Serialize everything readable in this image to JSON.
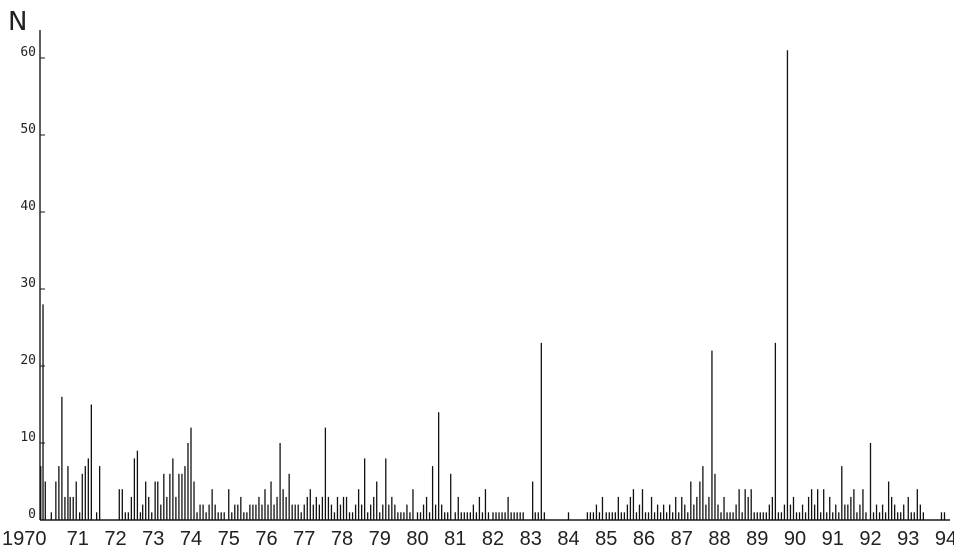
{
  "chart_data": {
    "type": "bar",
    "title": "",
    "ylabel": "N",
    "xlabel": "",
    "ylim": [
      0,
      62
    ],
    "xlim": [
      1970,
      1995
    ],
    "grid": false,
    "y_ticks": [
      {
        "value": 0,
        "label": "0"
      },
      {
        "value": 10,
        "label": "10"
      },
      {
        "value": 20,
        "label": "20"
      },
      {
        "value": 30,
        "label": "30"
      },
      {
        "value": 40,
        "label": "40"
      },
      {
        "value": 50,
        "label": "50"
      },
      {
        "value": 60,
        "label": "60"
      }
    ],
    "x_ticks": [
      {
        "value": 1970,
        "label": "1970"
      },
      {
        "value": 1971,
        "label": "71"
      },
      {
        "value": 1972,
        "label": "72"
      },
      {
        "value": 1973,
        "label": "73"
      },
      {
        "value": 1974,
        "label": "74"
      },
      {
        "value": 1975,
        "label": "75"
      },
      {
        "value": 1976,
        "label": "76"
      },
      {
        "value": 1977,
        "label": "77"
      },
      {
        "value": 1978,
        "label": "78"
      },
      {
        "value": 1979,
        "label": "79"
      },
      {
        "value": 1980,
        "label": "80"
      },
      {
        "value": 1981,
        "label": "81"
      },
      {
        "value": 1982,
        "label": "82"
      },
      {
        "value": 1983,
        "label": "83"
      },
      {
        "value": 1984,
        "label": "84"
      },
      {
        "value": 1985,
        "label": "85"
      },
      {
        "value": 1986,
        "label": "86"
      },
      {
        "value": 1987,
        "label": "87"
      },
      {
        "value": 1988,
        "label": "88"
      },
      {
        "value": 1989,
        "label": "89"
      },
      {
        "value": 1990,
        "label": "90"
      },
      {
        "value": 1991,
        "label": "91"
      },
      {
        "value": 1992,
        "label": "92"
      },
      {
        "value": 1993,
        "label": "93"
      },
      {
        "value": 1994,
        "label": "94"
      }
    ],
    "series": [
      {
        "points": [
          [
            1970.02,
            7
          ],
          [
            1970.08,
            28
          ],
          [
            1970.14,
            5
          ],
          [
            1970.3,
            1
          ],
          [
            1970.42,
            5
          ],
          [
            1970.5,
            7
          ],
          [
            1970.58,
            16
          ],
          [
            1970.66,
            3
          ],
          [
            1970.74,
            7
          ],
          [
            1970.8,
            3
          ],
          [
            1970.88,
            3
          ],
          [
            1970.96,
            5
          ],
          [
            1971.05,
            1
          ],
          [
            1971.12,
            6
          ],
          [
            1971.2,
            7
          ],
          [
            1971.28,
            8
          ],
          [
            1971.36,
            15
          ],
          [
            1971.5,
            1
          ],
          [
            1971.58,
            7
          ],
          [
            1972.1,
            4
          ],
          [
            1972.18,
            4
          ],
          [
            1972.26,
            1
          ],
          [
            1972.34,
            1
          ],
          [
            1972.42,
            3
          ],
          [
            1972.5,
            8
          ],
          [
            1972.58,
            9
          ],
          [
            1972.66,
            1
          ],
          [
            1972.72,
            2
          ],
          [
            1972.8,
            5
          ],
          [
            1972.88,
            3
          ],
          [
            1972.96,
            1
          ],
          [
            1973.05,
            5
          ],
          [
            1973.12,
            5
          ],
          [
            1973.2,
            2
          ],
          [
            1973.28,
            6
          ],
          [
            1973.36,
            3
          ],
          [
            1973.44,
            6
          ],
          [
            1973.52,
            8
          ],
          [
            1973.6,
            3
          ],
          [
            1973.68,
            6
          ],
          [
            1973.76,
            6
          ],
          [
            1973.84,
            7
          ],
          [
            1973.92,
            10
          ],
          [
            1974.0,
            12
          ],
          [
            1974.08,
            5
          ],
          [
            1974.16,
            1
          ],
          [
            1974.24,
            2
          ],
          [
            1974.32,
            2
          ],
          [
            1974.4,
            1
          ],
          [
            1974.48,
            2
          ],
          [
            1974.56,
            4
          ],
          [
            1974.64,
            2
          ],
          [
            1974.72,
            1
          ],
          [
            1974.8,
            1
          ],
          [
            1974.88,
            1
          ],
          [
            1975.0,
            4
          ],
          [
            1975.08,
            1
          ],
          [
            1975.16,
            2
          ],
          [
            1975.24,
            2
          ],
          [
            1975.32,
            3
          ],
          [
            1975.4,
            1
          ],
          [
            1975.48,
            1
          ],
          [
            1975.56,
            2
          ],
          [
            1975.64,
            2
          ],
          [
            1975.72,
            2
          ],
          [
            1975.8,
            3
          ],
          [
            1975.88,
            2
          ],
          [
            1975.96,
            4
          ],
          [
            1976.04,
            2
          ],
          [
            1976.12,
            5
          ],
          [
            1976.2,
            2
          ],
          [
            1976.28,
            3
          ],
          [
            1976.36,
            10
          ],
          [
            1976.44,
            4
          ],
          [
            1976.52,
            3
          ],
          [
            1976.6,
            6
          ],
          [
            1976.68,
            2
          ],
          [
            1976.76,
            2
          ],
          [
            1976.84,
            2
          ],
          [
            1976.92,
            1
          ],
          [
            1977.0,
            2
          ],
          [
            1977.08,
            3
          ],
          [
            1977.16,
            4
          ],
          [
            1977.24,
            2
          ],
          [
            1977.32,
            3
          ],
          [
            1977.4,
            2
          ],
          [
            1977.48,
            3
          ],
          [
            1977.56,
            12
          ],
          [
            1977.64,
            3
          ],
          [
            1977.72,
            2
          ],
          [
            1977.8,
            1
          ],
          [
            1977.88,
            3
          ],
          [
            1977.96,
            2
          ],
          [
            1978.04,
            3
          ],
          [
            1978.12,
            3
          ],
          [
            1978.2,
            1
          ],
          [
            1978.28,
            1
          ],
          [
            1978.36,
            2
          ],
          [
            1978.44,
            4
          ],
          [
            1978.52,
            2
          ],
          [
            1978.6,
            8
          ],
          [
            1978.68,
            1
          ],
          [
            1978.76,
            2
          ],
          [
            1978.84,
            3
          ],
          [
            1978.92,
            5
          ],
          [
            1979.0,
            1
          ],
          [
            1979.08,
            2
          ],
          [
            1979.16,
            8
          ],
          [
            1979.24,
            2
          ],
          [
            1979.32,
            3
          ],
          [
            1979.4,
            2
          ],
          [
            1979.48,
            1
          ],
          [
            1979.56,
            1
          ],
          [
            1979.64,
            1
          ],
          [
            1979.72,
            2
          ],
          [
            1979.8,
            1
          ],
          [
            1979.88,
            4
          ],
          [
            1980.0,
            1
          ],
          [
            1980.08,
            1
          ],
          [
            1980.16,
            2
          ],
          [
            1980.24,
            3
          ],
          [
            1980.32,
            1
          ],
          [
            1980.4,
            7
          ],
          [
            1980.48,
            2
          ],
          [
            1980.56,
            14
          ],
          [
            1980.64,
            2
          ],
          [
            1980.72,
            1
          ],
          [
            1980.8,
            1
          ],
          [
            1980.88,
            6
          ],
          [
            1981.0,
            1
          ],
          [
            1981.08,
            3
          ],
          [
            1981.16,
            1
          ],
          [
            1981.24,
            1
          ],
          [
            1981.32,
            1
          ],
          [
            1981.4,
            1
          ],
          [
            1981.48,
            2
          ],
          [
            1981.56,
            1
          ],
          [
            1981.64,
            3
          ],
          [
            1981.72,
            1
          ],
          [
            1981.8,
            4
          ],
          [
            1981.88,
            1
          ],
          [
            1982.0,
            1
          ],
          [
            1982.08,
            1
          ],
          [
            1982.16,
            1
          ],
          [
            1982.24,
            1
          ],
          [
            1982.32,
            1
          ],
          [
            1982.4,
            3
          ],
          [
            1982.48,
            1
          ],
          [
            1982.56,
            1
          ],
          [
            1982.64,
            1
          ],
          [
            1982.72,
            1
          ],
          [
            1982.8,
            1
          ],
          [
            1983.05,
            5
          ],
          [
            1983.12,
            1
          ],
          [
            1983.2,
            1
          ],
          [
            1983.28,
            23
          ],
          [
            1983.36,
            1
          ],
          [
            1984.0,
            1
          ],
          [
            1984.5,
            1
          ],
          [
            1984.58,
            1
          ],
          [
            1984.66,
            1
          ],
          [
            1984.74,
            2
          ],
          [
            1984.82,
            1
          ],
          [
            1984.9,
            3
          ],
          [
            1985.0,
            1
          ],
          [
            1985.08,
            1
          ],
          [
            1985.16,
            1
          ],
          [
            1985.24,
            1
          ],
          [
            1985.32,
            3
          ],
          [
            1985.4,
            1
          ],
          [
            1985.48,
            1
          ],
          [
            1985.56,
            2
          ],
          [
            1985.64,
            3
          ],
          [
            1985.72,
            4
          ],
          [
            1985.8,
            1
          ],
          [
            1985.88,
            2
          ],
          [
            1985.96,
            4
          ],
          [
            1986.04,
            1
          ],
          [
            1986.12,
            1
          ],
          [
            1986.2,
            3
          ],
          [
            1986.28,
            1
          ],
          [
            1986.36,
            2
          ],
          [
            1986.44,
            1
          ],
          [
            1986.52,
            2
          ],
          [
            1986.6,
            1
          ],
          [
            1986.68,
            2
          ],
          [
            1986.76,
            1
          ],
          [
            1986.84,
            3
          ],
          [
            1986.92,
            1
          ],
          [
            1987.0,
            3
          ],
          [
            1987.08,
            2
          ],
          [
            1987.16,
            1
          ],
          [
            1987.24,
            5
          ],
          [
            1987.32,
            2
          ],
          [
            1987.4,
            3
          ],
          [
            1987.48,
            5
          ],
          [
            1987.56,
            7
          ],
          [
            1987.64,
            2
          ],
          [
            1987.72,
            3
          ],
          [
            1987.8,
            22
          ],
          [
            1987.88,
            6
          ],
          [
            1987.96,
            2
          ],
          [
            1988.04,
            1
          ],
          [
            1988.12,
            3
          ],
          [
            1988.2,
            1
          ],
          [
            1988.28,
            1
          ],
          [
            1988.36,
            1
          ],
          [
            1988.44,
            2
          ],
          [
            1988.52,
            4
          ],
          [
            1988.6,
            1
          ],
          [
            1988.68,
            4
          ],
          [
            1988.76,
            3
          ],
          [
            1988.84,
            4
          ],
          [
            1988.92,
            1
          ],
          [
            1989.0,
            1
          ],
          [
            1989.08,
            1
          ],
          [
            1989.16,
            1
          ],
          [
            1989.24,
            1
          ],
          [
            1989.32,
            2
          ],
          [
            1989.4,
            3
          ],
          [
            1989.48,
            23
          ],
          [
            1989.56,
            1
          ],
          [
            1989.64,
            1
          ],
          [
            1989.72,
            2
          ],
          [
            1989.8,
            61
          ],
          [
            1989.88,
            2
          ],
          [
            1989.96,
            3
          ],
          [
            1990.04,
            1
          ],
          [
            1990.12,
            1
          ],
          [
            1990.2,
            2
          ],
          [
            1990.28,
            1
          ],
          [
            1990.36,
            3
          ],
          [
            1990.44,
            4
          ],
          [
            1990.52,
            2
          ],
          [
            1990.6,
            4
          ],
          [
            1990.68,
            1
          ],
          [
            1990.76,
            4
          ],
          [
            1990.84,
            1
          ],
          [
            1990.92,
            3
          ],
          [
            1991.0,
            1
          ],
          [
            1991.08,
            2
          ],
          [
            1991.16,
            1
          ],
          [
            1991.24,
            7
          ],
          [
            1991.32,
            2
          ],
          [
            1991.4,
            2
          ],
          [
            1991.48,
            3
          ],
          [
            1991.56,
            4
          ],
          [
            1991.64,
            1
          ],
          [
            1991.72,
            2
          ],
          [
            1991.8,
            4
          ],
          [
            1991.88,
            1
          ],
          [
            1992.0,
            10
          ],
          [
            1992.08,
            1
          ],
          [
            1992.16,
            2
          ],
          [
            1992.24,
            1
          ],
          [
            1992.32,
            2
          ],
          [
            1992.4,
            1
          ],
          [
            1992.48,
            5
          ],
          [
            1992.56,
            3
          ],
          [
            1992.64,
            2
          ],
          [
            1992.72,
            1
          ],
          [
            1992.8,
            1
          ],
          [
            1992.88,
            2
          ],
          [
            1993.0,
            3
          ],
          [
            1993.08,
            1
          ],
          [
            1993.16,
            1
          ],
          [
            1993.24,
            4
          ],
          [
            1993.32,
            2
          ],
          [
            1993.4,
            1
          ],
          [
            1993.88,
            1
          ],
          [
            1993.96,
            1
          ],
          [
            1994.6,
            1
          ]
        ]
      }
    ]
  }
}
